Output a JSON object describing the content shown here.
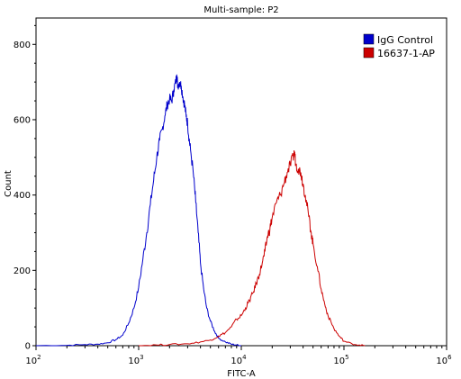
{
  "chart_data": {
    "type": "line",
    "title": "Multi-sample: P2",
    "xlabel": "FITC-A",
    "ylabel": "Count",
    "x_scale": "log",
    "xlim": [
      100,
      1000000
    ],
    "ylim": [
      0,
      870
    ],
    "x_ticks": [
      {
        "base": "10",
        "exp": "2",
        "value": 100
      },
      {
        "base": "10",
        "exp": "3",
        "value": 1000
      },
      {
        "base": "10",
        "exp": "4",
        "value": 10000
      },
      {
        "base": "10",
        "exp": "5",
        "value": 100000
      },
      {
        "base": "10",
        "exp": "6",
        "value": 1000000
      }
    ],
    "y_ticks": [
      "0",
      "200",
      "400",
      "600",
      "800"
    ],
    "legend_position": "top-right",
    "grid": false,
    "series": [
      {
        "name": "IgG Control",
        "color": "#0000cc",
        "points": [
          [
            100,
            0
          ],
          [
            200,
            1
          ],
          [
            300,
            3
          ],
          [
            400,
            4
          ],
          [
            500,
            8
          ],
          [
            600,
            16
          ],
          [
            700,
            28
          ],
          [
            800,
            60
          ],
          [
            900,
            100
          ],
          [
            1000,
            155
          ],
          [
            1100,
            230
          ],
          [
            1200,
            300
          ],
          [
            1300,
            375
          ],
          [
            1400,
            440
          ],
          [
            1500,
            500
          ],
          [
            1600,
            545
          ],
          [
            1700,
            575
          ],
          [
            1800,
            610
          ],
          [
            1900,
            640
          ],
          [
            2000,
            655
          ],
          [
            2100,
            650
          ],
          [
            2200,
            680
          ],
          [
            2300,
            700
          ],
          [
            2350,
            720
          ],
          [
            2400,
            690
          ],
          [
            2500,
            700
          ],
          [
            2600,
            690
          ],
          [
            2700,
            660
          ],
          [
            2800,
            640
          ],
          [
            2900,
            610
          ],
          [
            3000,
            590
          ],
          [
            3100,
            550
          ],
          [
            3200,
            520
          ],
          [
            3400,
            460
          ],
          [
            3600,
            380
          ],
          [
            3800,
            300
          ],
          [
            4000,
            220
          ],
          [
            4300,
            150
          ],
          [
            4600,
            100
          ],
          [
            5000,
            65
          ],
          [
            5500,
            38
          ],
          [
            6000,
            20
          ],
          [
            7000,
            10
          ],
          [
            8000,
            4
          ],
          [
            9000,
            2
          ],
          [
            10000,
            0
          ]
        ]
      },
      {
        "name": "16637-1-AP",
        "color": "#cc0000",
        "points": [
          [
            1000,
            0
          ],
          [
            1500,
            2
          ],
          [
            2000,
            3
          ],
          [
            3000,
            5
          ],
          [
            4000,
            10
          ],
          [
            5000,
            15
          ],
          [
            6000,
            25
          ],
          [
            7000,
            35
          ],
          [
            8000,
            50
          ],
          [
            9000,
            70
          ],
          [
            10000,
            80
          ],
          [
            11000,
            100
          ],
          [
            12000,
            120
          ],
          [
            13000,
            140
          ],
          [
            14000,
            165
          ],
          [
            15000,
            190
          ],
          [
            16000,
            220
          ],
          [
            17000,
            250
          ],
          [
            18000,
            290
          ],
          [
            19000,
            310
          ],
          [
            20000,
            340
          ],
          [
            22000,
            380
          ],
          [
            24000,
            400
          ],
          [
            26000,
            430
          ],
          [
            28000,
            460
          ],
          [
            30000,
            480
          ],
          [
            32000,
            500
          ],
          [
            33000,
            515
          ],
          [
            34000,
            480
          ],
          [
            36000,
            470
          ],
          [
            38000,
            460
          ],
          [
            40000,
            430
          ],
          [
            42000,
            400
          ],
          [
            45000,
            350
          ],
          [
            48000,
            300
          ],
          [
            50000,
            270
          ],
          [
            55000,
            210
          ],
          [
            60000,
            150
          ],
          [
            65000,
            110
          ],
          [
            70000,
            80
          ],
          [
            80000,
            45
          ],
          [
            90000,
            25
          ],
          [
            100000,
            12
          ],
          [
            120000,
            5
          ],
          [
            140000,
            2
          ],
          [
            160000,
            0
          ]
        ]
      }
    ]
  }
}
